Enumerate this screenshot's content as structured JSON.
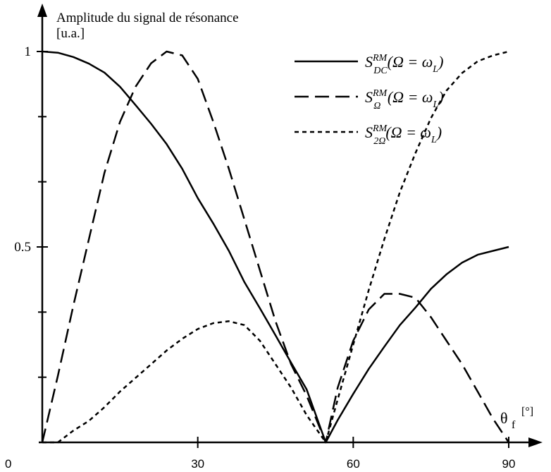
{
  "chart_data": {
    "type": "line",
    "ylabel_line1": "Amplitude du signal de résonance",
    "ylabel_line2": "[u.a.]",
    "xlabel_main": "θ",
    "xlabel_sub": "f",
    "xlabel_unit": "[°]",
    "xlim": [
      0,
      90
    ],
    "ylim": [
      0,
      1
    ],
    "x_tick_values": [
      30,
      60,
      90
    ],
    "x_tick_labels": [
      "30",
      "60",
      "90"
    ],
    "origin_label": "0",
    "y_tick_labels": [
      {
        "value": 1,
        "label": "1"
      },
      {
        "value": 0.5,
        "label": "0.5"
      }
    ],
    "y_minor_ticks": [
      0.1667,
      0.3333,
      0.6667,
      0.8333
    ],
    "legend_position": "top-right",
    "series": [
      {
        "legend_label": "S_DC^RM(Ω = ω_L)",
        "sym": "S",
        "sub": "DC",
        "sup": "RM",
        "arg": "(Ω = ω",
        "arg_sub": "L",
        "arg_end": ")",
        "style": "solid",
        "x": [
          0,
          3,
          6,
          9,
          12,
          15,
          18,
          21,
          24,
          27,
          30,
          33,
          36,
          39,
          42,
          45,
          48,
          51,
          54.7,
          57,
          60,
          63,
          66,
          69,
          72,
          75,
          78,
          81,
          84,
          87,
          90
        ],
        "y": [
          1.0,
          0.997,
          0.986,
          0.969,
          0.946,
          0.91,
          0.863,
          0.815,
          0.763,
          0.7,
          0.625,
          0.56,
          0.49,
          0.41,
          0.343,
          0.274,
          0.204,
          0.136,
          0.0,
          0.057,
          0.124,
          0.188,
          0.245,
          0.3,
          0.345,
          0.393,
          0.43,
          0.46,
          0.48,
          0.49,
          0.5
        ]
      },
      {
        "legend_label": "S_Ω^RM(Ω = ω_L)",
        "sym": "S",
        "sub": "Ω",
        "sup": "RM",
        "arg": "(Ω = ω",
        "arg_sub": "L",
        "arg_end": ")",
        "style": "dashed",
        "x": [
          0,
          3,
          6,
          9,
          12,
          15,
          18,
          21,
          24,
          27,
          30,
          33,
          36,
          39,
          42,
          45,
          48,
          51,
          54.7,
          57,
          60,
          63,
          66,
          69,
          72,
          75,
          78,
          81,
          84,
          87,
          90
        ],
        "y": [
          0.0,
          0.17,
          0.35,
          0.52,
          0.69,
          0.82,
          0.91,
          0.97,
          1.0,
          0.99,
          0.93,
          0.82,
          0.7,
          0.57,
          0.44,
          0.31,
          0.2,
          0.12,
          0.0,
          0.14,
          0.26,
          0.34,
          0.38,
          0.38,
          0.37,
          0.32,
          0.26,
          0.2,
          0.13,
          0.06,
          0.0
        ]
      },
      {
        "legend_label": "S_2Ω^RM(Ω = ω_L)",
        "sym": "S",
        "sub": "2Ω",
        "sup": "RM",
        "arg": "(Ω = ω",
        "arg_sub": "L",
        "arg_end": ")",
        "style": "dotted",
        "x": [
          0,
          3,
          6,
          9,
          12,
          15,
          18,
          21,
          24,
          27,
          30,
          33,
          36,
          39,
          42,
          45,
          48,
          51,
          54.7,
          57,
          60,
          63,
          66,
          69,
          72,
          75,
          78,
          81,
          84,
          87,
          90
        ],
        "y": [
          0.0,
          0.0,
          0.03,
          0.055,
          0.09,
          0.13,
          0.165,
          0.2,
          0.235,
          0.265,
          0.29,
          0.305,
          0.31,
          0.3,
          0.26,
          0.2,
          0.14,
          0.07,
          0.0,
          0.11,
          0.25,
          0.39,
          0.52,
          0.64,
          0.74,
          0.83,
          0.9,
          0.945,
          0.975,
          0.99,
          1.0
        ]
      }
    ]
  }
}
